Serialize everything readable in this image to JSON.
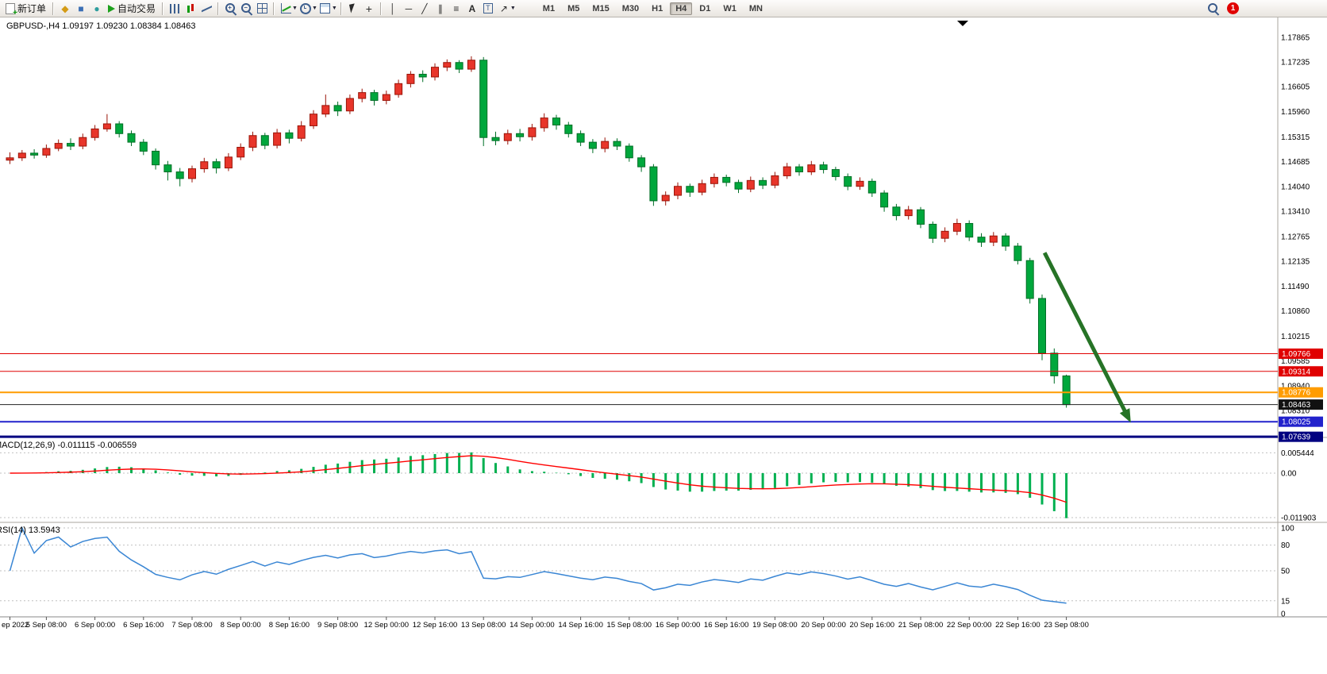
{
  "toolbar": {
    "new_order_label": "新订单",
    "autotrade_label": "自动交易",
    "timeframes": [
      "M1",
      "M5",
      "M15",
      "M30",
      "H1",
      "H4",
      "D1",
      "W1",
      "MN"
    ],
    "active_timeframe": "H4",
    "notification_badge": "1",
    "text_tool_glyph": "A",
    "textbox_tool_glyph": "T"
  },
  "chart_info": {
    "title_line": "GBPUSD-,H4  1.09197 1.09230 1.08384 1.08463",
    "symbol": "GBPUSD-",
    "period": "H4",
    "open": "1.09197",
    "high": "1.09230",
    "low": "1.08384",
    "close": "1.08463"
  },
  "macd_panel": {
    "label": "MACD(12,26,9) -0.011115 -0.006559",
    "scale": [
      {
        "text": "0.005444",
        "value": 0.005444
      },
      {
        "text": "0.00",
        "value": 0
      },
      {
        "text": "-0.011903",
        "value": -0.011903
      }
    ]
  },
  "rsi_panel": {
    "label": "RSI(14) 13.5943",
    "levels": [
      {
        "text": "100",
        "value": 100,
        "line": true
      },
      {
        "text": "80",
        "value": 80,
        "line": true
      },
      {
        "text": "50",
        "value": 50,
        "line": true
      },
      {
        "text": "15",
        "value": 15,
        "line": true
      },
      {
        "text": "0",
        "value": 0,
        "line": false
      }
    ]
  },
  "chart_data": {
    "type": "candlestick",
    "symbol": "GBPUSD-",
    "timeframe": "H4",
    "current": {
      "open": 1.09197,
      "high": 1.0923,
      "low": 1.08384,
      "close": 1.08463
    },
    "y_axis": [
      "1.17865",
      "1.17235",
      "1.16605",
      "1.15960",
      "1.15315",
      "1.14685",
      "1.14040",
      "1.13410",
      "1.12765",
      "1.12135",
      "1.11490",
      "1.10860",
      "1.10215",
      "1.09585",
      "1.08940",
      "1.08310"
    ],
    "x_labels": [
      {
        "i": 0,
        "text": "ep 2022"
      },
      {
        "i": 3,
        "text": "5 Sep 08:00"
      },
      {
        "i": 7,
        "text": "6 Sep 00:00"
      },
      {
        "i": 11,
        "text": "6 Sep 16:00"
      },
      {
        "i": 15,
        "text": "7 Sep 08:00"
      },
      {
        "i": 19,
        "text": "8 Sep 00:00"
      },
      {
        "i": 23,
        "text": "8 Sep 16:00"
      },
      {
        "i": 27,
        "text": "9 Sep 08:00"
      },
      {
        "i": 31,
        "text": "12 Sep 00:00"
      },
      {
        "i": 35,
        "text": "12 Sep 16:00"
      },
      {
        "i": 39,
        "text": "13 Sep 08:00"
      },
      {
        "i": 43,
        "text": "14 Sep 00:00"
      },
      {
        "i": 47,
        "text": "14 Sep 16:00"
      },
      {
        "i": 51,
        "text": "15 Sep 08:00"
      },
      {
        "i": 55,
        "text": "16 Sep 00:00"
      },
      {
        "i": 59,
        "text": "16 Sep 16:00"
      },
      {
        "i": 63,
        "text": "19 Sep 08:00"
      },
      {
        "i": 67,
        "text": "20 Sep 00:00"
      },
      {
        "i": 71,
        "text": "20 Sep 16:00"
      },
      {
        "i": 75,
        "text": "21 Sep 08:00"
      },
      {
        "i": 79,
        "text": "22 Sep 00:00"
      },
      {
        "i": 83,
        "text": "22 Sep 16:00"
      },
      {
        "i": 87,
        "text": "23 Sep 08:00"
      }
    ],
    "candles": [
      [
        1.1472,
        1.1492,
        1.1462,
        1.1478
      ],
      [
        1.1478,
        1.1498,
        1.147,
        1.149
      ],
      [
        1.149,
        1.15,
        1.1476,
        1.1485
      ],
      [
        1.1485,
        1.1512,
        1.1478,
        1.1502
      ],
      [
        1.1502,
        1.1525,
        1.1495,
        1.1515
      ],
      [
        1.1515,
        1.1528,
        1.1498,
        1.1508
      ],
      [
        1.1508,
        1.154,
        1.15,
        1.153
      ],
      [
        1.153,
        1.1562,
        1.1522,
        1.1552
      ],
      [
        1.1552,
        1.159,
        1.1545,
        1.1565
      ],
      [
        1.1565,
        1.1572,
        1.153,
        1.154
      ],
      [
        1.154,
        1.1548,
        1.1508,
        1.1518
      ],
      [
        1.1518,
        1.1526,
        1.1485,
        1.1495
      ],
      [
        1.1495,
        1.1502,
        1.1448,
        1.146
      ],
      [
        1.146,
        1.147,
        1.142,
        1.1442
      ],
      [
        1.1442,
        1.1452,
        1.1405,
        1.1425
      ],
      [
        1.1425,
        1.1458,
        1.1415,
        1.145
      ],
      [
        1.145,
        1.1478,
        1.144,
        1.1468
      ],
      [
        1.1468,
        1.1476,
        1.1438,
        1.1452
      ],
      [
        1.1452,
        1.149,
        1.1444,
        1.148
      ],
      [
        1.148,
        1.1515,
        1.1472,
        1.1505
      ],
      [
        1.1505,
        1.1545,
        1.1495,
        1.1535
      ],
      [
        1.1535,
        1.1542,
        1.15,
        1.151
      ],
      [
        1.151,
        1.1552,
        1.1502,
        1.1542
      ],
      [
        1.1542,
        1.155,
        1.1515,
        1.1528
      ],
      [
        1.1528,
        1.1572,
        1.152,
        1.156
      ],
      [
        1.156,
        1.16,
        1.1552,
        1.159
      ],
      [
        1.159,
        1.164,
        1.1582,
        1.1612
      ],
      [
        1.1612,
        1.1622,
        1.1585,
        1.1598
      ],
      [
        1.1598,
        1.164,
        1.159,
        1.163
      ],
      [
        1.163,
        1.1655,
        1.162,
        1.1645
      ],
      [
        1.1645,
        1.1652,
        1.1612,
        1.1625
      ],
      [
        1.1625,
        1.165,
        1.1615,
        1.164
      ],
      [
        1.164,
        1.1678,
        1.1632,
        1.1668
      ],
      [
        1.1668,
        1.17,
        1.1658,
        1.1692
      ],
      [
        1.1692,
        1.1702,
        1.1672,
        1.1685
      ],
      [
        1.1685,
        1.172,
        1.1676,
        1.171
      ],
      [
        1.171,
        1.173,
        1.17,
        1.1722
      ],
      [
        1.1722,
        1.1728,
        1.1695,
        1.1705
      ],
      [
        1.1705,
        1.1738,
        1.1698,
        1.1728
      ],
      [
        1.1728,
        1.1736,
        1.1508,
        1.153
      ],
      [
        1.153,
        1.1545,
        1.151,
        1.1522
      ],
      [
        1.1522,
        1.155,
        1.1512,
        1.154
      ],
      [
        1.154,
        1.1552,
        1.152,
        1.1532
      ],
      [
        1.1532,
        1.1565,
        1.1522,
        1.1555
      ],
      [
        1.1555,
        1.1592,
        1.1545,
        1.158
      ],
      [
        1.158,
        1.1588,
        1.155,
        1.1562
      ],
      [
        1.1562,
        1.157,
        1.153,
        1.154
      ],
      [
        1.154,
        1.1548,
        1.1508,
        1.1518
      ],
      [
        1.1518,
        1.1526,
        1.149,
        1.1502
      ],
      [
        1.1502,
        1.153,
        1.1492,
        1.152
      ],
      [
        1.152,
        1.1528,
        1.1498,
        1.1508
      ],
      [
        1.1508,
        1.1515,
        1.1468,
        1.1478
      ],
      [
        1.1478,
        1.1485,
        1.1442,
        1.1455
      ],
      [
        1.1455,
        1.1462,
        1.1355,
        1.1368
      ],
      [
        1.1368,
        1.1392,
        1.1356,
        1.1382
      ],
      [
        1.1382,
        1.1415,
        1.1372,
        1.1405
      ],
      [
        1.1405,
        1.1412,
        1.1378,
        1.139
      ],
      [
        1.139,
        1.1422,
        1.1382,
        1.1412
      ],
      [
        1.1412,
        1.1438,
        1.1402,
        1.1428
      ],
      [
        1.1428,
        1.1435,
        1.1405,
        1.1415
      ],
      [
        1.1415,
        1.1422,
        1.1388,
        1.1398
      ],
      [
        1.1398,
        1.143,
        1.139,
        1.142
      ],
      [
        1.142,
        1.1428,
        1.1398,
        1.1408
      ],
      [
        1.1408,
        1.1442,
        1.14,
        1.1432
      ],
      [
        1.1432,
        1.1465,
        1.1424,
        1.1455
      ],
      [
        1.1455,
        1.1462,
        1.1432,
        1.1442
      ],
      [
        1.1442,
        1.147,
        1.1434,
        1.146
      ],
      [
        1.146,
        1.1468,
        1.1438,
        1.1448
      ],
      [
        1.1448,
        1.1455,
        1.142,
        1.143
      ],
      [
        1.143,
        1.1438,
        1.1395,
        1.1405
      ],
      [
        1.1405,
        1.1428,
        1.1396,
        1.1418
      ],
      [
        1.1418,
        1.1425,
        1.1378,
        1.1388
      ],
      [
        1.1388,
        1.1395,
        1.134,
        1.1352
      ],
      [
        1.1352,
        1.136,
        1.1318,
        1.133
      ],
      [
        1.133,
        1.1355,
        1.132,
        1.1345
      ],
      [
        1.1345,
        1.1352,
        1.1298,
        1.1308
      ],
      [
        1.1308,
        1.1315,
        1.126,
        1.1272
      ],
      [
        1.1272,
        1.13,
        1.1262,
        1.129
      ],
      [
        1.129,
        1.1322,
        1.128,
        1.131
      ],
      [
        1.131,
        1.1318,
        1.1265,
        1.1275
      ],
      [
        1.1275,
        1.1285,
        1.125,
        1.1262
      ],
      [
        1.1262,
        1.1288,
        1.1252,
        1.1278
      ],
      [
        1.1278,
        1.1285,
        1.124,
        1.1252
      ],
      [
        1.1252,
        1.126,
        1.1205,
        1.1215
      ],
      [
        1.1215,
        1.1222,
        1.1105,
        1.1118
      ],
      [
        1.1118,
        1.1128,
        1.096,
        1.0978
      ],
      [
        1.0978,
        1.099,
        1.09,
        1.092
      ],
      [
        1.09197,
        1.0923,
        1.08384,
        1.08463
      ]
    ],
    "hlines": [
      {
        "price": 1.09766,
        "color": "#e00000",
        "width": 1,
        "badge": "1.09766",
        "badge_bg": "#e00000"
      },
      {
        "price": 1.09314,
        "color": "#e00000",
        "width": 1,
        "badge": "1.09314",
        "badge_bg": "#e00000"
      },
      {
        "price": 1.08776,
        "color": "#ff9c00",
        "width": 2,
        "badge": "1.08776",
        "badge_bg": "#ff9c00"
      },
      {
        "price": 1.08463,
        "color": "#222222",
        "width": 1,
        "badge": "1.08463",
        "badge_bg": "#111111"
      },
      {
        "price": 1.08025,
        "color": "#2222cc",
        "width": 2,
        "badge": "1.08025",
        "badge_bg": "#2222cc"
      },
      {
        "price": 1.07639,
        "color": "#000080",
        "width": 3,
        "badge": "1.07639",
        "badge_bg": "#000080"
      }
    ],
    "arrow": {
      "from_candle": 85.5,
      "from_price": 1.1235,
      "to_candle": 92.6,
      "to_price": 1.08,
      "color": "#267326"
    },
    "colors": {
      "up": "#e8352a",
      "up_border": "#9a1408",
      "down": "#00a73c",
      "down_border": "#006e26",
      "macd_hist": "#00b050",
      "macd_signal": "#ff0000",
      "rsi_line": "#3a86d4",
      "grid": "#c0c0c0",
      "separator": "#a8a49e"
    },
    "indicators": {
      "macd": {
        "fast": 12,
        "slow": 26,
        "signal": 9
      },
      "rsi": {
        "period": 14
      }
    }
  }
}
